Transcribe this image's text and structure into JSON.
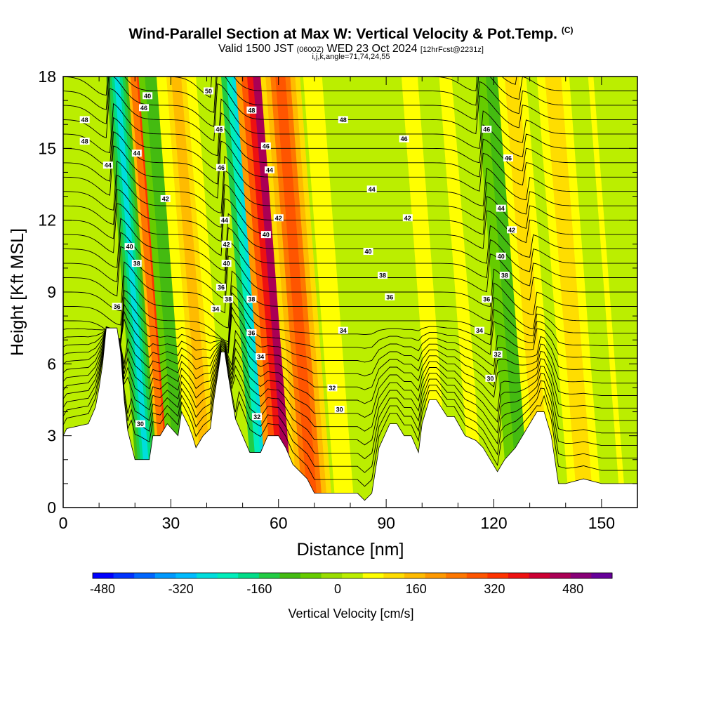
{
  "title": {
    "main": "Wind-Parallel Section at Max W: Vertical Velocity & Pot.Temp.",
    "copyright": "(C)",
    "valid_prefix": "Valid 1500 JST",
    "valid_utc": "(0600Z)",
    "valid_date": "WED 23 Oct 2024",
    "forecast": "[12hrFcst@2231z]",
    "indices": "i,j,k,angle=71,74,24,55"
  },
  "chart_data": {
    "type": "heatmap",
    "xlabel": "Distance [nm]",
    "ylabel": "Height [Kft MSL]",
    "xlim": [
      0,
      160
    ],
    "ylim": [
      0,
      18
    ],
    "x_ticks": [
      0,
      30,
      60,
      90,
      120,
      150
    ],
    "y_ticks": [
      0,
      3,
      6,
      9,
      12,
      15,
      18
    ],
    "colorbar": {
      "label": "Vertical Velocity [cm/s]",
      "range": [
        -500,
        560
      ],
      "tick_values": [
        -480,
        -320,
        -160,
        0,
        160,
        320,
        480
      ],
      "tick_labels": [
        "-480",
        "-320",
        "-160",
        "0",
        "160",
        "320",
        "480"
      ],
      "colors": [
        "#0000ff",
        "#0033ff",
        "#0066ff",
        "#0099ff",
        "#00bbff",
        "#00dddd",
        "#00eebb",
        "#00dd88",
        "#22cc44",
        "#44bb11",
        "#66cc00",
        "#99dd00",
        "#bbee00",
        "#ffff00",
        "#ffdd00",
        "#ffbb00",
        "#ff9900",
        "#ff7700",
        "#ff5500",
        "#ff3300",
        "#ee1111",
        "#cc0033",
        "#aa0055",
        "#880077",
        "#660099"
      ]
    },
    "terrain_kft": [
      [
        0,
        3.0
      ],
      [
        1,
        3.3
      ],
      [
        7,
        3.5
      ],
      [
        9,
        4.2
      ],
      [
        10,
        5.0
      ],
      [
        11,
        6.0
      ],
      [
        12,
        7.5
      ],
      [
        15,
        7.5
      ],
      [
        16,
        6.5
      ],
      [
        17,
        4.5
      ],
      [
        18,
        3.2
      ],
      [
        20,
        2.0
      ],
      [
        24,
        2.0
      ],
      [
        25,
        3.0
      ],
      [
        27,
        3.0
      ],
      [
        29,
        3.5
      ],
      [
        32,
        3.0
      ],
      [
        33,
        4.0
      ],
      [
        35,
        3.4
      ],
      [
        36,
        3.0
      ],
      [
        37,
        2.5
      ],
      [
        39,
        3.0
      ],
      [
        41,
        3.3
      ],
      [
        42,
        4.5
      ],
      [
        43,
        5.5
      ],
      [
        44,
        6.5
      ],
      [
        45,
        6.5
      ],
      [
        46,
        5.5
      ],
      [
        48,
        3.7
      ],
      [
        50,
        3.0
      ],
      [
        52,
        2.3
      ],
      [
        55,
        2.3
      ],
      [
        57,
        3.0
      ],
      [
        60,
        3.0
      ],
      [
        62,
        2.5
      ],
      [
        64,
        1.8
      ],
      [
        68,
        1.2
      ],
      [
        70,
        0.6
      ],
      [
        74,
        0.6
      ],
      [
        78,
        0.6
      ],
      [
        82,
        0.6
      ],
      [
        84,
        0.3
      ],
      [
        86,
        0.6
      ],
      [
        88,
        2.5
      ],
      [
        91,
        3.5
      ],
      [
        93,
        3.5
      ],
      [
        95,
        3.0
      ],
      [
        97,
        3.0
      ],
      [
        99,
        2.3
      ],
      [
        100,
        3.5
      ],
      [
        102,
        4.5
      ],
      [
        104,
        4.5
      ],
      [
        107,
        3.8
      ],
      [
        109,
        3.8
      ],
      [
        112,
        3.0
      ],
      [
        115,
        2.8
      ],
      [
        117,
        2.5
      ],
      [
        119,
        2.0
      ],
      [
        121,
        1.5
      ],
      [
        123,
        2.0
      ],
      [
        126,
        2.5
      ],
      [
        128,
        3.0
      ],
      [
        130,
        3.5
      ],
      [
        132,
        4.0
      ],
      [
        134,
        4.0
      ],
      [
        136,
        3.0
      ],
      [
        138,
        1.0
      ],
      [
        140,
        1.0
      ],
      [
        145,
        1.2
      ],
      [
        150,
        1.0
      ],
      [
        155,
        1.0
      ],
      [
        160,
        1.0
      ]
    ],
    "updraft_bands_cm_s": [
      {
        "x0": 17,
        "x1": 31,
        "w": 500
      },
      {
        "x0": 12,
        "x1": 18,
        "w": -300
      },
      {
        "x0": 21,
        "x1": 28,
        "w": -120
      },
      {
        "x0": 44,
        "x1": 56,
        "w": -400
      },
      {
        "x0": 48,
        "x1": 61,
        "w": 540
      },
      {
        "x0": 55,
        "x1": 66,
        "w": 330
      },
      {
        "x0": 26,
        "x1": 37,
        "w": 180
      },
      {
        "x0": 66,
        "x1": 73,
        "w": 100
      },
      {
        "x0": 92,
        "x1": 101,
        "w": 90
      },
      {
        "x0": 103,
        "x1": 110,
        "w": 80
      },
      {
        "x0": 115,
        "x1": 126,
        "w": -140
      },
      {
        "x0": 121,
        "x1": 129,
        "w": 150
      },
      {
        "x0": 132,
        "x1": 141,
        "w": 160
      },
      {
        "x0": 144,
        "x1": 150,
        "w": 70
      }
    ],
    "contour_labels": [
      {
        "text": "48",
        "x": 6,
        "y": 16.2
      },
      {
        "text": "48",
        "x": 6,
        "y": 15.3
      },
      {
        "text": "44",
        "x": 12.5,
        "y": 14.3
      },
      {
        "text": "40",
        "x": 23.5,
        "y": 17.2
      },
      {
        "text": "46",
        "x": 22.5,
        "y": 16.7
      },
      {
        "text": "44",
        "x": 20.5,
        "y": 14.8
      },
      {
        "text": "42",
        "x": 28.5,
        "y": 12.9
      },
      {
        "text": "40",
        "x": 18.5,
        "y": 10.9
      },
      {
        "text": "38",
        "x": 20.5,
        "y": 10.2
      },
      {
        "text": "36",
        "x": 15.0,
        "y": 8.4
      },
      {
        "text": "30",
        "x": 21.5,
        "y": 3.5
      },
      {
        "text": "50",
        "x": 40.5,
        "y": 17.4
      },
      {
        "text": "46",
        "x": 43.5,
        "y": 15.8
      },
      {
        "text": "46",
        "x": 44.0,
        "y": 14.2
      },
      {
        "text": "44",
        "x": 45.0,
        "y": 12.0
      },
      {
        "text": "42",
        "x": 45.5,
        "y": 11.0
      },
      {
        "text": "40",
        "x": 45.5,
        "y": 10.2
      },
      {
        "text": "36",
        "x": 44.0,
        "y": 9.2
      },
      {
        "text": "38",
        "x": 46.0,
        "y": 8.7
      },
      {
        "text": "34",
        "x": 42.5,
        "y": 8.3
      },
      {
        "text": "48",
        "x": 52.5,
        "y": 16.6
      },
      {
        "text": "46",
        "x": 56.5,
        "y": 15.1
      },
      {
        "text": "44",
        "x": 57.5,
        "y": 14.1
      },
      {
        "text": "42",
        "x": 60.0,
        "y": 12.1
      },
      {
        "text": "40",
        "x": 56.5,
        "y": 11.4
      },
      {
        "text": "38",
        "x": 52.5,
        "y": 8.7
      },
      {
        "text": "36",
        "x": 52.5,
        "y": 7.3
      },
      {
        "text": "34",
        "x": 55.0,
        "y": 6.3
      },
      {
        "text": "32",
        "x": 54.0,
        "y": 3.8
      },
      {
        "text": "48",
        "x": 78,
        "y": 16.2
      },
      {
        "text": "46",
        "x": 95,
        "y": 15.4
      },
      {
        "text": "44",
        "x": 86,
        "y": 13.3
      },
      {
        "text": "42",
        "x": 96,
        "y": 12.1
      },
      {
        "text": "40",
        "x": 85,
        "y": 10.7
      },
      {
        "text": "38",
        "x": 89,
        "y": 9.7
      },
      {
        "text": "36",
        "x": 91,
        "y": 8.8
      },
      {
        "text": "34",
        "x": 78,
        "y": 7.4
      },
      {
        "text": "32",
        "x": 75,
        "y": 5.0
      },
      {
        "text": "30",
        "x": 77,
        "y": 4.1
      },
      {
        "text": "46",
        "x": 118,
        "y": 15.8
      },
      {
        "text": "46",
        "x": 124,
        "y": 14.6
      },
      {
        "text": "44",
        "x": 122,
        "y": 12.5
      },
      {
        "text": "42",
        "x": 125,
        "y": 11.6
      },
      {
        "text": "40",
        "x": 122,
        "y": 10.5
      },
      {
        "text": "38",
        "x": 123,
        "y": 9.7
      },
      {
        "text": "36",
        "x": 118,
        "y": 8.7
      },
      {
        "text": "34",
        "x": 116,
        "y": 7.4
      },
      {
        "text": "32",
        "x": 121,
        "y": 6.4
      },
      {
        "text": "30",
        "x": 119,
        "y": 5.4
      }
    ]
  }
}
